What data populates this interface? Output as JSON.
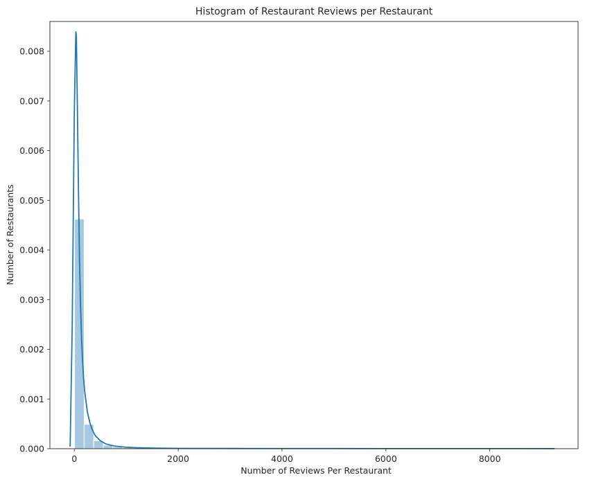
{
  "chart_data": {
    "type": "bar",
    "title": "Histogram of Restaurant Reviews per Restaurant",
    "xlabel": "Number of Reviews Per Restaurant",
    "ylabel": "Number of Restaurants",
    "xlim": [
      -470,
      9700
    ],
    "ylim": [
      0,
      0.0086
    ],
    "x_ticks": [
      0,
      2000,
      4000,
      6000,
      8000
    ],
    "x_tick_labels": [
      "0",
      "2000",
      "4000",
      "6000",
      "8000"
    ],
    "y_ticks": [
      0,
      0.001,
      0.002,
      0.003,
      0.004,
      0.005,
      0.006,
      0.007,
      0.008
    ],
    "y_tick_labels": [
      "0.000",
      "0.001",
      "0.002",
      "0.003",
      "0.004",
      "0.005",
      "0.006",
      "0.007",
      "0.008"
    ],
    "grid": false,
    "legend": "none",
    "bar_color": "#a6c8e2",
    "line_color": "#1f77b4",
    "histogram": {
      "bin_width": 184,
      "bin_starts": [
        5,
        189,
        373,
        557,
        741,
        925,
        1109,
        1293,
        1477,
        1661
      ],
      "values": [
        0.00462,
        0.00049,
        0.00016,
        7e-05,
        3.5e-05,
        2e-05,
        1.2e-05,
        9e-06,
        7e-06,
        5e-06
      ]
    },
    "kde": {
      "x": [
        -80,
        -40,
        0,
        30,
        40,
        60,
        80,
        100,
        120,
        140,
        160,
        180,
        200,
        250,
        300,
        350,
        400,
        500,
        600,
        700,
        800,
        1000,
        1200,
        1500,
        2000,
        3000,
        4000,
        5000,
        6000,
        7000,
        8000,
        9250
      ],
      "y": [
        4e-05,
        0.0025,
        0.0068,
        0.0084,
        0.0083,
        0.0068,
        0.0052,
        0.0038,
        0.0029,
        0.0022,
        0.00175,
        0.0014,
        0.00115,
        0.00075,
        0.00052,
        0.00037,
        0.00027,
        0.00016,
        0.0001,
        7e-05,
        5e-05,
        3e-05,
        2e-05,
        1.2e-05,
        7e-06,
        4e-06,
        3e-06,
        3e-06,
        2e-06,
        2e-06,
        2e-06,
        1e-06
      ]
    }
  }
}
